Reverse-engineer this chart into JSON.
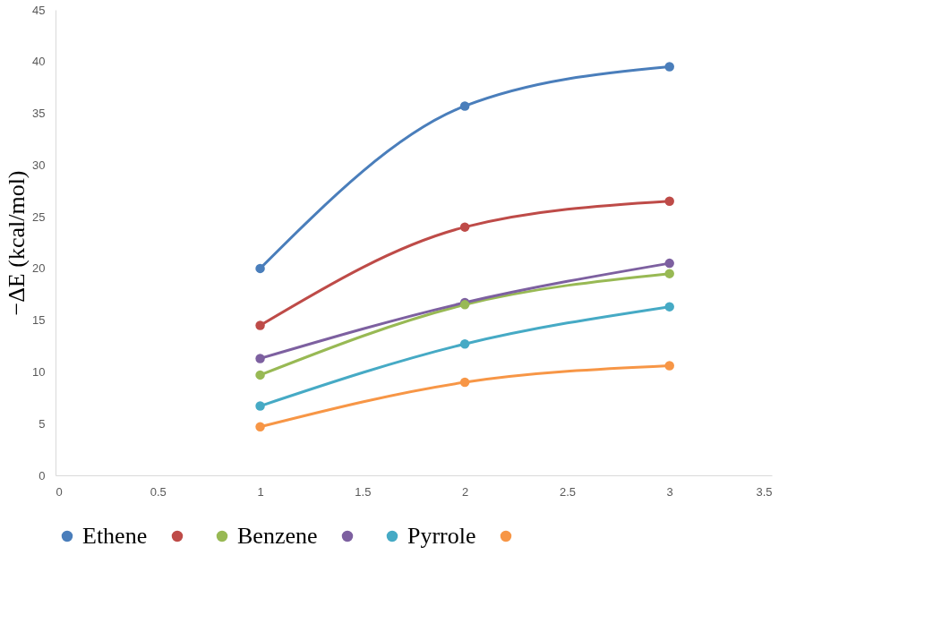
{
  "chart_data": {
    "type": "line",
    "ylabel": "−ΔE (kcal/mol)",
    "x": [
      1,
      2,
      3
    ],
    "series": [
      {
        "name": "Ethene",
        "color": "#4a7ebb",
        "values": [
          20,
          35.7,
          39.5
        ]
      },
      {
        "color": "#be4b48",
        "values": [
          14.5,
          24,
          26.5
        ]
      },
      {
        "name": "Benzene",
        "color": "#98b954",
        "values": [
          9.7,
          16.5,
          19.5
        ]
      },
      {
        "color": "#7d60a0",
        "values": [
          11.3,
          16.7,
          20.5
        ]
      },
      {
        "name": "Pyrrole",
        "color": "#46aac5",
        "values": [
          6.7,
          12.7,
          16.3
        ]
      },
      {
        "color": "#f79646",
        "values": [
          4.7,
          9,
          10.6
        ]
      }
    ],
    "xlim": [
      0,
      3.5
    ],
    "xticks": [
      0,
      0.5,
      1,
      1.5,
      2,
      2.5,
      3,
      3.5
    ],
    "ylim": [
      0,
      45
    ],
    "yticks": [
      0,
      5,
      10,
      15,
      20,
      25,
      30,
      35,
      40,
      45
    ],
    "grid": false,
    "legend": "bottom",
    "marker": "circle",
    "line_style": "solid"
  }
}
